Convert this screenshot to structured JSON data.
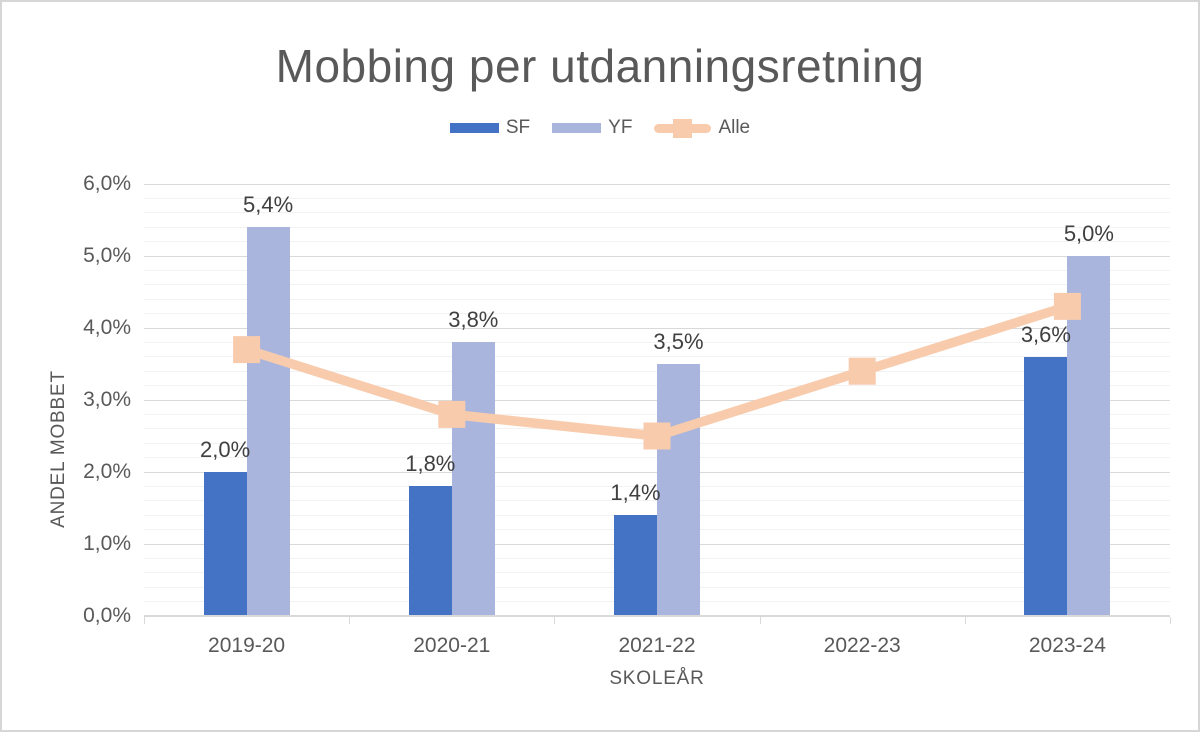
{
  "chart_data": {
    "type": "combo-bar-line",
    "title": "Mobbing per utdanningsretning",
    "categories": [
      "2019-20",
      "2020-21",
      "2021-22",
      "2022-23",
      "2023-24"
    ],
    "series": [
      {
        "name": "SF",
        "type": "bar",
        "color": "#4472C4",
        "values": [
          2.0,
          1.8,
          1.4,
          null,
          3.6
        ],
        "labels": [
          "2,0%",
          "1,8%",
          "1,4%",
          null,
          "3,6%"
        ]
      },
      {
        "name": "YF",
        "type": "bar",
        "color": "#A9B5DC",
        "values": [
          5.4,
          3.8,
          3.5,
          null,
          5.0
        ],
        "labels": [
          "5,4%",
          "3,8%",
          "3,5%",
          null,
          "5,0%"
        ]
      },
      {
        "name": "Alle",
        "type": "line",
        "color": "#F8CBAD",
        "marker": "square",
        "values": [
          3.7,
          2.8,
          2.5,
          3.4,
          4.3
        ],
        "labels": [
          null,
          null,
          null,
          null,
          null
        ]
      }
    ],
    "xlabel": "SKOLEÅR",
    "ylabel": "ANDEL MOBBET",
    "ylim": [
      0,
      6
    ],
    "y_major_step": 1,
    "y_minor_step": 0.2,
    "y_tick_labels": [
      "0,0%",
      "1,0%",
      "2,0%",
      "3,0%",
      "4,0%",
      "5,0%",
      "6,0%"
    ],
    "legend_position": "top-center",
    "grid": {
      "major": true,
      "minor": true
    }
  },
  "colors": {
    "background": "#FFFFFF",
    "border": "#D6D6D6",
    "title": "#595959",
    "tick_label": "#595959",
    "axis_title": "#595959",
    "data_label": "#404040",
    "grid_major": "#D9D9D9",
    "grid_minor": "#F2F2F2",
    "axis_line": "#D9D9D9"
  }
}
